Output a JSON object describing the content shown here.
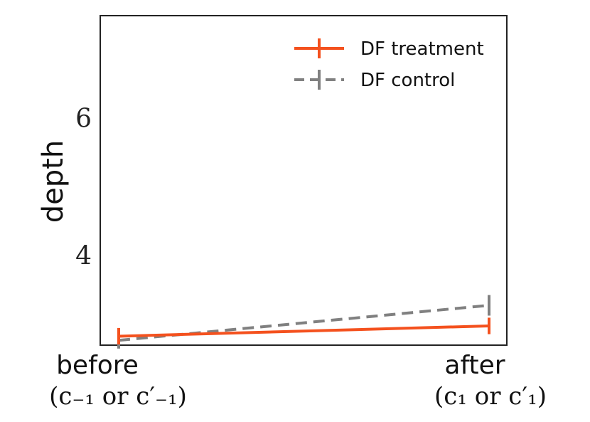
{
  "chart_data": {
    "type": "line",
    "title": "",
    "ylabel": "depth",
    "xlabel": "",
    "ylim": [
      2.7,
      7.5
    ],
    "yticks": [
      4,
      6
    ],
    "categories": [
      {
        "main": "before",
        "sub": "(c₋₁ or c′₋₁)"
      },
      {
        "main": "after",
        "sub": "(c₁ or c′₁)"
      }
    ],
    "series": [
      {
        "name": "DF treatment",
        "color": "#f4511e",
        "dash": "solid",
        "values": [
          2.83,
          2.98
        ],
        "err": [
          0.12,
          0.12
        ]
      },
      {
        "name": "DF control",
        "color": "#808080",
        "dash": "dashed",
        "values": [
          2.77,
          3.28
        ],
        "err": [
          0.12,
          0.15
        ]
      }
    ],
    "legend_position": "top-right",
    "grid": false
  }
}
